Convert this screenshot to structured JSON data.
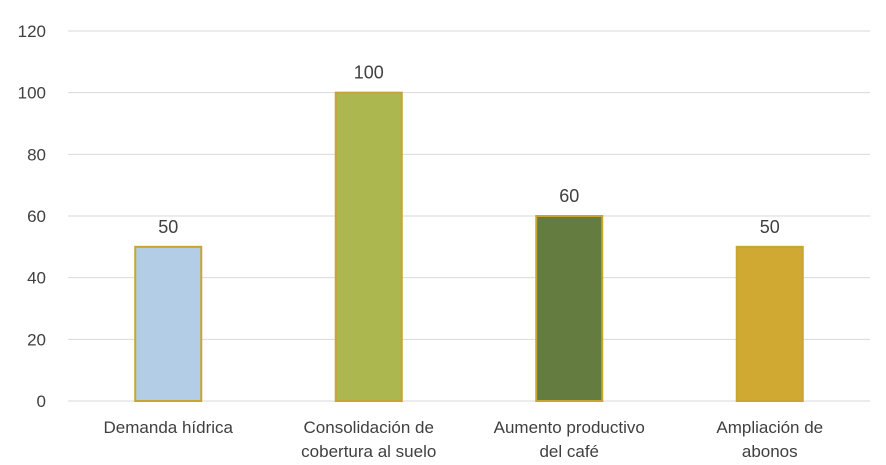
{
  "chart_data": {
    "type": "bar",
    "title": "",
    "xlabel": "",
    "ylabel": "",
    "ylim": [
      0,
      120
    ],
    "yticks": [
      0,
      20,
      40,
      60,
      80,
      100,
      120
    ],
    "grid": true,
    "legend": "none",
    "categories": [
      [
        "Demanda hídrica"
      ],
      [
        "Consolidación de",
        "cobertura al suelo"
      ],
      [
        "Aumento productivo",
        "del café"
      ],
      [
        "Ampliación de",
        "abonos"
      ]
    ],
    "values": [
      50,
      100,
      60,
      50
    ],
    "data_labels": [
      "50",
      "100",
      "60",
      "50"
    ],
    "colors": [
      "#b4cde6",
      "#adb74f",
      "#647c40",
      "#cfa932"
    ],
    "bar_border_color": "#c8a431"
  }
}
